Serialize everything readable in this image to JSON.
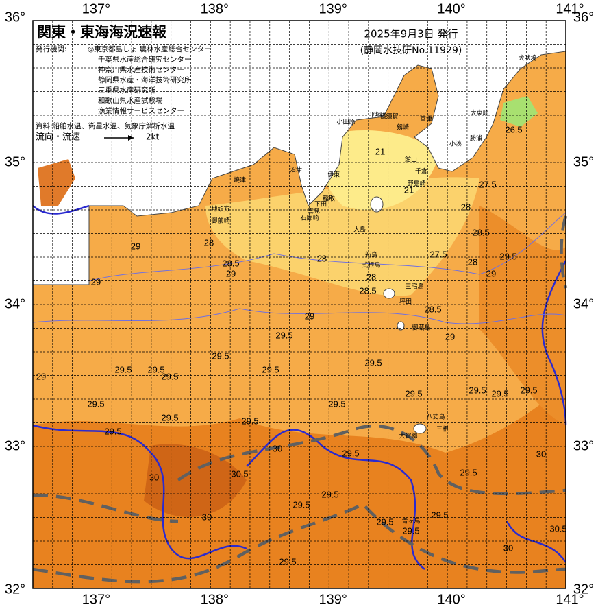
{
  "header": {
    "title": "関東・東海海況速報",
    "date": "2025年9月3日 発行",
    "issuer_code": "(静岡水技研No.11929)"
  },
  "issuers": {
    "label": "発行機関:",
    "items": [
      "◎東京都島しょ 農林水産総合センター",
      "千葉県水産総合研究センター",
      "神奈川県水産技術センター",
      "静岡県水産・海洋技術研究所",
      "三重県水産研究所",
      "和歌山県水産試験場",
      "漁業情報サービスセンター"
    ]
  },
  "source": "資料:船舶水温、衛星水温、気象庁解析水温",
  "flow_legend": {
    "label": "流向・流速",
    "unit": "2kt"
  },
  "axes": {
    "lon_labels": [
      "137°",
      "138°",
      "139°",
      "140°",
      "141°"
    ],
    "lat_labels": [
      "36°",
      "35°",
      "34°",
      "33°",
      "32°"
    ]
  },
  "places": [
    "犬吠埼",
    "太東崎",
    "勝浦",
    "小湊",
    "富津",
    "横須賀",
    "平塚",
    "小田原",
    "剱崎",
    "館山",
    "千倉",
    "野島崎",
    "沼津",
    "伊東",
    "稲取",
    "下田",
    "雲見",
    "石廊崎",
    "焼津",
    "地頭方",
    "御前崎",
    "大島",
    "新島",
    "式根島",
    "三宅島",
    "坪田",
    "御蔵島",
    "八丈島",
    "大賀郷",
    "三根",
    "青ヶ島"
  ],
  "isotherms": [
    "28",
    "28.5",
    "29",
    "29",
    "29",
    "28",
    "28",
    "28.5",
    "21",
    "21",
    "27.5",
    "28",
    "27.5",
    "28",
    "28.5",
    "29.5",
    "29",
    "28.5",
    "29",
    "29",
    "29.5",
    "29.5",
    "29.5",
    "29.5",
    "29.5",
    "29.5",
    "29.5",
    "29.5",
    "29.5",
    "29.5",
    "29.5",
    "29.5",
    "29.5",
    "29.5",
    "29.5",
    "29.5",
    "29.5",
    "29.5",
    "29.5",
    "29.5",
    "29.5",
    "29.5",
    "29.5",
    "29.5",
    "30",
    "30",
    "30.5",
    "30",
    "30",
    "30.5",
    "30",
    "26.5",
    "29"
  ]
}
